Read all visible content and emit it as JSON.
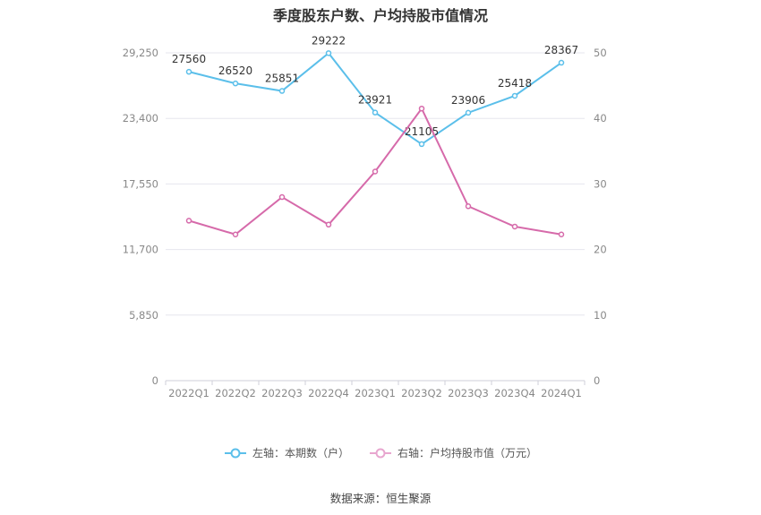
{
  "title": "季度股东户数、户均持股市值情况",
  "source": "数据来源：恒生聚源",
  "colors": {
    "left": "#5bbfea",
    "right": "#d66aaa",
    "grid": "#e6e6ee",
    "axis_text": "#888888",
    "label_text": "#333333"
  },
  "chart_data": {
    "type": "line",
    "categories": [
      "2022Q1",
      "2022Q2",
      "2022Q3",
      "2022Q4",
      "2023Q1",
      "2023Q2",
      "2023Q3",
      "2023Q4",
      "2024Q1"
    ],
    "series": [
      {
        "name": "左轴：本期数（户）",
        "axis": "left",
        "values": [
          27560,
          26520,
          25851,
          29222,
          23921,
          21105,
          23906,
          25418,
          28367
        ],
        "data_labels": true
      },
      {
        "name": "右轴：户均持股市值（万元）",
        "axis": "right",
        "values": [
          24.4,
          22.3,
          28.0,
          23.8,
          31.9,
          41.5,
          26.6,
          23.5,
          22.3
        ],
        "data_labels": false
      }
    ],
    "y_left": {
      "ticks": [
        "0",
        "5,850",
        "11,700",
        "17,550",
        "23,400",
        "29,250"
      ],
      "range": [
        0,
        29250
      ]
    },
    "y_right": {
      "ticks": [
        "0",
        "10",
        "20",
        "30",
        "40",
        "50"
      ],
      "range": [
        0,
        50
      ]
    },
    "grid": true,
    "legend_position": "bottom"
  }
}
